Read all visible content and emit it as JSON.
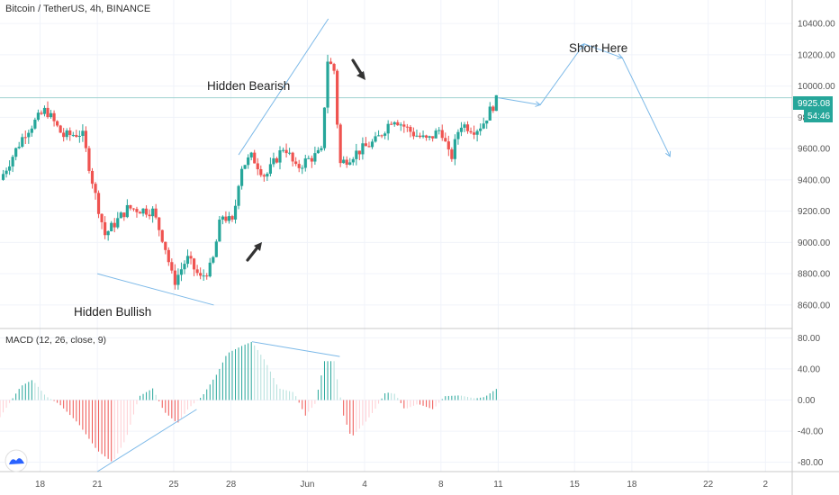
{
  "header": {
    "title": "Bitcoin / TetherUS, 4h, BINANCE"
  },
  "price_badge": {
    "value": "9925.08",
    "countdown": "54:46"
  },
  "indicator": {
    "label": "MACD (12, 26, close, 9)"
  },
  "annotations": {
    "hidden_bearish": "Hidden Bearish",
    "hidden_bullish": "Hidden Bullish",
    "short_here": "Short Here"
  },
  "colors": {
    "up": "#26a69a",
    "down": "#ef5350",
    "line": "#7cb9e8",
    "hline": "#9fd3d0",
    "badge": "#26a69a"
  },
  "chart_data": [
    {
      "type": "candlestick",
      "title": "Bitcoin / TetherUS, 4h, BINANCE",
      "y_ticks": [
        8600,
        8800,
        9000,
        9200,
        9400,
        9600,
        9800,
        10000,
        10200,
        10400
      ],
      "y_tick_labels": [
        "8600.00",
        "8800.00",
        "9000.00",
        "9200.00",
        "9400.00",
        "9600.00",
        "9800.00",
        "10000.00",
        "10200.00",
        "10400.00"
      ],
      "ylim": [
        8450,
        10550
      ],
      "x_ticks": [
        18,
        21,
        25,
        28,
        32,
        35,
        39,
        42,
        46,
        49,
        53,
        56
      ],
      "x_tick_labels": [
        "18",
        "21",
        "25",
        "28",
        "Jun",
        "4",
        "8",
        "11",
        "15",
        "18",
        "22",
        "2"
      ],
      "xlim": [
        15.9,
        57.4
      ],
      "current_price": 9925.08,
      "key_points": [
        {
          "day": 15.9,
          "price": 9400
        },
        {
          "day": 17.2,
          "price": 9700
        },
        {
          "day": 18.3,
          "price": 9850
        },
        {
          "day": 19.2,
          "price": 9680
        },
        {
          "day": 20.2,
          "price": 9700
        },
        {
          "day": 20.9,
          "price": 9300
        },
        {
          "day": 21.4,
          "price": 9050
        },
        {
          "day": 22.6,
          "price": 9220
        },
        {
          "day": 23.9,
          "price": 9200
        },
        {
          "day": 24.5,
          "price": 9000
        },
        {
          "day": 25.0,
          "price": 8740
        },
        {
          "day": 25.7,
          "price": 8900
        },
        {
          "day": 26.4,
          "price": 8770
        },
        {
          "day": 27.0,
          "price": 8850
        },
        {
          "day": 27.5,
          "price": 9180
        },
        {
          "day": 28.1,
          "price": 9120
        },
        {
          "day": 28.5,
          "price": 9480
        },
        {
          "day": 29.1,
          "price": 9550
        },
        {
          "day": 29.8,
          "price": 9420
        },
        {
          "day": 30.8,
          "price": 9620
        },
        {
          "day": 31.4,
          "price": 9470
        },
        {
          "day": 31.9,
          "price": 9520
        },
        {
          "day": 32.8,
          "price": 9580
        },
        {
          "day": 33.0,
          "price": 10180
        },
        {
          "day": 33.4,
          "price": 10100
        },
        {
          "day": 33.7,
          "price": 9500
        },
        {
          "day": 34.5,
          "price": 9570
        },
        {
          "day": 35.6,
          "price": 9650
        },
        {
          "day": 36.5,
          "price": 9800
        },
        {
          "day": 37.5,
          "price": 9700
        },
        {
          "day": 38.3,
          "price": 9650
        },
        {
          "day": 39.0,
          "price": 9730
        },
        {
          "day": 39.5,
          "price": 9520
        },
        {
          "day": 40.0,
          "price": 9760
        },
        {
          "day": 40.8,
          "price": 9720
        },
        {
          "day": 41.2,
          "price": 9760
        },
        {
          "day": 41.6,
          "price": 9850
        },
        {
          "day": 42.0,
          "price": 9925
        }
      ],
      "trendlines": [
        {
          "name": "hidden-bearish-line",
          "from": {
            "day": 28.4,
            "price": 9560
          },
          "to": {
            "day": 33.1,
            "price": 10430
          }
        },
        {
          "name": "hidden-bullish-line",
          "from": {
            "day": 21.0,
            "price": 8800
          },
          "to": {
            "day": 27.1,
            "price": 8600
          }
        }
      ],
      "horizontal_line": {
        "price": 9925
      },
      "projection": [
        {
          "day": 42.0,
          "price": 9925
        },
        {
          "day": 44.2,
          "price": 9880
        },
        {
          "day": 46.5,
          "price": 10270
        },
        {
          "day": 48.5,
          "price": 10180
        },
        {
          "day": 51.0,
          "price": 9550
        }
      ]
    },
    {
      "type": "histogram",
      "title": "MACD (12, 26, close, 9)",
      "y_ticks": [
        -80,
        -40,
        0,
        40,
        80
      ],
      "y_tick_labels": [
        "-80.00",
        "-40.00",
        "0.00",
        "40.00",
        "80.00"
      ],
      "ylim": [
        -92,
        92
      ],
      "key_points": [
        {
          "day": 15.9,
          "value": -22
        },
        {
          "day": 17.0,
          "value": 18
        },
        {
          "day": 17.6,
          "value": 26
        },
        {
          "day": 18.3,
          "value": 5
        },
        {
          "day": 19.0,
          "value": -5
        },
        {
          "day": 20.0,
          "value": -30
        },
        {
          "day": 21.0,
          "value": -65
        },
        {
          "day": 21.8,
          "value": -80
        },
        {
          "day": 22.5,
          "value": -50
        },
        {
          "day": 23.2,
          "value": 5
        },
        {
          "day": 23.9,
          "value": 15
        },
        {
          "day": 24.5,
          "value": -15
        },
        {
          "day": 25.2,
          "value": -30
        },
        {
          "day": 25.8,
          "value": -10
        },
        {
          "day": 26.5,
          "value": 5
        },
        {
          "day": 27.3,
          "value": 35
        },
        {
          "day": 27.8,
          "value": 60
        },
        {
          "day": 28.6,
          "value": 70
        },
        {
          "day": 29.1,
          "value": 75
        },
        {
          "day": 29.8,
          "value": 50
        },
        {
          "day": 30.5,
          "value": 15
        },
        {
          "day": 31.3,
          "value": 10
        },
        {
          "day": 31.9,
          "value": -20
        },
        {
          "day": 32.4,
          "value": -5
        },
        {
          "day": 32.9,
          "value": 50
        },
        {
          "day": 33.4,
          "value": 50
        },
        {
          "day": 33.9,
          "value": -20
        },
        {
          "day": 34.3,
          "value": -48
        },
        {
          "day": 35.0,
          "value": -30
        },
        {
          "day": 35.6,
          "value": -10
        },
        {
          "day": 36.1,
          "value": 10
        },
        {
          "day": 36.6,
          "value": 8
        },
        {
          "day": 37.1,
          "value": -12
        },
        {
          "day": 37.8,
          "value": -5
        },
        {
          "day": 38.6,
          "value": -12
        },
        {
          "day": 39.2,
          "value": 5
        },
        {
          "day": 40.0,
          "value": 6
        },
        {
          "day": 40.8,
          "value": 2
        },
        {
          "day": 41.3,
          "value": 4
        },
        {
          "day": 42.0,
          "value": 16
        }
      ],
      "trendlines": [
        {
          "name": "macd-top-line",
          "from": {
            "day": 29.1,
            "value": 75
          },
          "to": {
            "day": 33.7,
            "value": 56
          }
        },
        {
          "name": "macd-bottom-line",
          "from": {
            "day": 21.0,
            "value": -92
          },
          "to": {
            "day": 26.2,
            "value": -12
          }
        }
      ]
    }
  ]
}
